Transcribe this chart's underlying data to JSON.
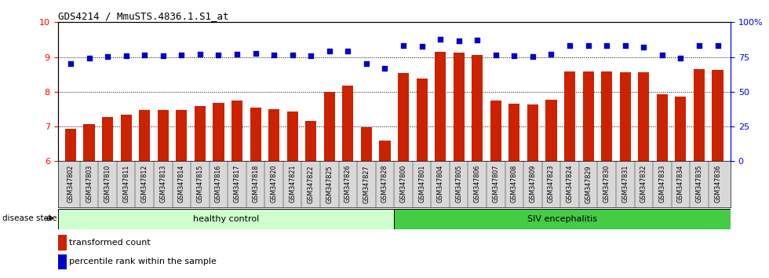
{
  "title": "GDS4214 / MmuSTS.4836.1.S1_at",
  "samples": [
    "GSM347802",
    "GSM347803",
    "GSM347810",
    "GSM347811",
    "GSM347812",
    "GSM347813",
    "GSM347814",
    "GSM347815",
    "GSM347816",
    "GSM347817",
    "GSM347818",
    "GSM347820",
    "GSM347821",
    "GSM347822",
    "GSM347825",
    "GSM347826",
    "GSM347827",
    "GSM347828",
    "GSM347800",
    "GSM347801",
    "GSM347804",
    "GSM347805",
    "GSM347806",
    "GSM347807",
    "GSM347808",
    "GSM347809",
    "GSM347823",
    "GSM347824",
    "GSM347829",
    "GSM347830",
    "GSM347831",
    "GSM347832",
    "GSM347833",
    "GSM347834",
    "GSM347835",
    "GSM347836"
  ],
  "bar_values": [
    6.93,
    7.06,
    7.27,
    7.35,
    7.48,
    7.48,
    7.48,
    7.6,
    7.68,
    7.75,
    7.55,
    7.5,
    7.42,
    7.17,
    8.0,
    8.18,
    6.98,
    6.6,
    8.53,
    8.38,
    9.15,
    9.12,
    9.05,
    7.74,
    7.65,
    7.64,
    7.76,
    8.58,
    8.58,
    8.58,
    8.57,
    8.55,
    7.93,
    7.85,
    8.65,
    8.62
  ],
  "percentile_values": [
    70.0,
    74.0,
    75.5,
    76.0,
    76.5,
    76.0,
    76.5,
    77.0,
    76.5,
    77.0,
    77.5,
    76.5,
    76.5,
    76.0,
    79.0,
    79.5,
    70.5,
    67.0,
    83.0,
    82.5,
    87.5,
    86.5,
    87.0,
    76.5,
    76.0,
    75.5,
    77.0,
    83.5,
    83.0,
    83.5,
    83.0,
    82.0,
    76.5,
    74.0,
    83.5,
    83.0
  ],
  "healthy_count": 18,
  "ylim_left": [
    6,
    10
  ],
  "ylim_right": [
    0,
    100
  ],
  "yticks_left": [
    6,
    7,
    8,
    9,
    10
  ],
  "yticks_right": [
    0,
    25,
    50,
    75,
    100
  ],
  "bar_color": "#cc2200",
  "dot_color": "#0000cc",
  "healthy_color": "#ccffcc",
  "siv_color": "#44cc44",
  "disease_state_label": "disease state",
  "healthy_label": "healthy control",
  "siv_label": "SIV encephalitis",
  "legend1": "transformed count",
  "legend2": "percentile rank within the sample",
  "xtick_bg": "#d8d8d8"
}
